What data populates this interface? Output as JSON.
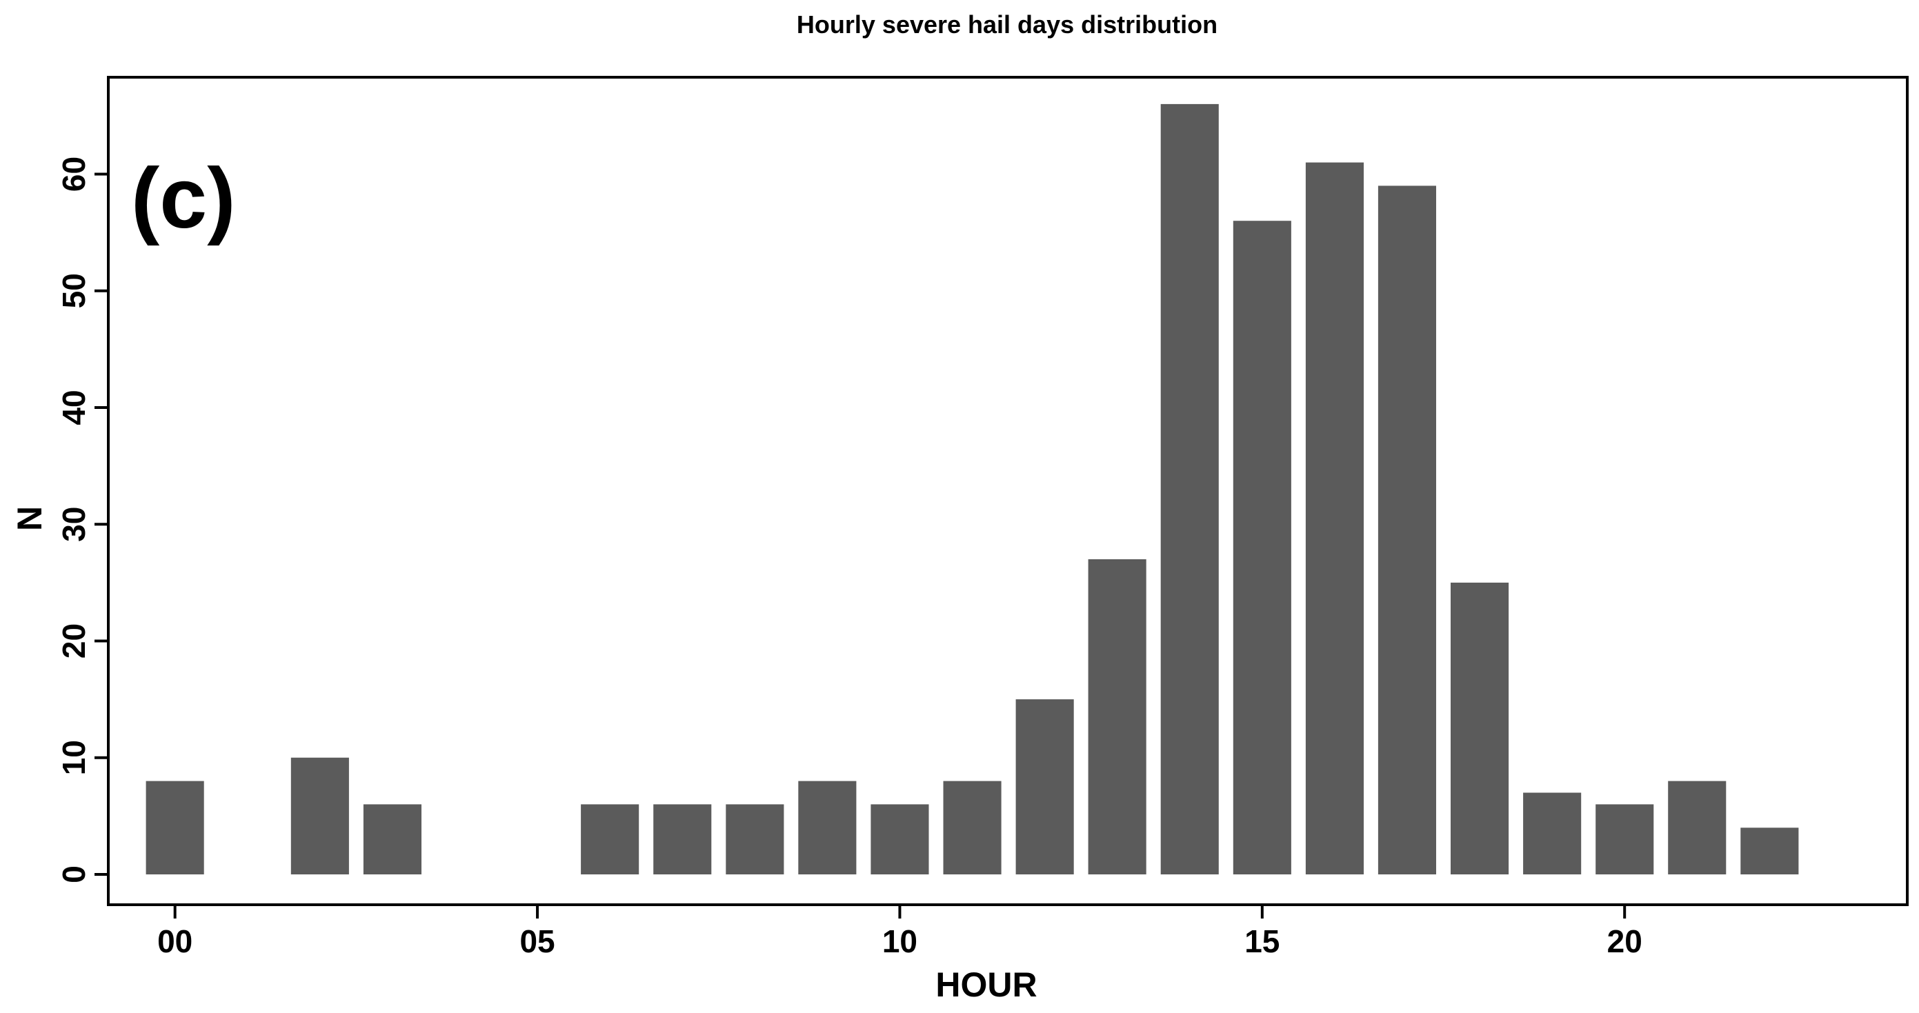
{
  "chart_data": {
    "type": "bar",
    "title": "Hourly severe hail days distribution",
    "panel_label": "(c)",
    "xlabel": "HOUR",
    "ylabel": "N",
    "x": [
      0,
      1,
      2,
      3,
      4,
      5,
      6,
      7,
      8,
      9,
      10,
      11,
      12,
      13,
      14,
      15,
      16,
      17,
      18,
      19,
      20,
      21,
      22
    ],
    "values": [
      8,
      0,
      10,
      6,
      0,
      0,
      6,
      6,
      6,
      8,
      6,
      8,
      15,
      27,
      66,
      56,
      61,
      59,
      25,
      7,
      6,
      8,
      4
    ],
    "xticks": [
      {
        "value": 0,
        "label": "00"
      },
      {
        "value": 5,
        "label": "05"
      },
      {
        "value": 10,
        "label": "10"
      },
      {
        "value": 15,
        "label": "15"
      },
      {
        "value": 20,
        "label": "20"
      }
    ],
    "yticks": [
      {
        "value": 0,
        "label": "0"
      },
      {
        "value": 10,
        "label": "10"
      },
      {
        "value": 20,
        "label": "20"
      },
      {
        "value": 30,
        "label": "30"
      },
      {
        "value": 40,
        "label": "40"
      },
      {
        "value": 50,
        "label": "50"
      },
      {
        "value": 60,
        "label": "60"
      }
    ],
    "xlim": [
      -0.92,
      23.9
    ],
    "ylim": [
      -2.6,
      68.3
    ],
    "bar_color": "#5b5b5b",
    "grid": false,
    "legend": "none"
  }
}
